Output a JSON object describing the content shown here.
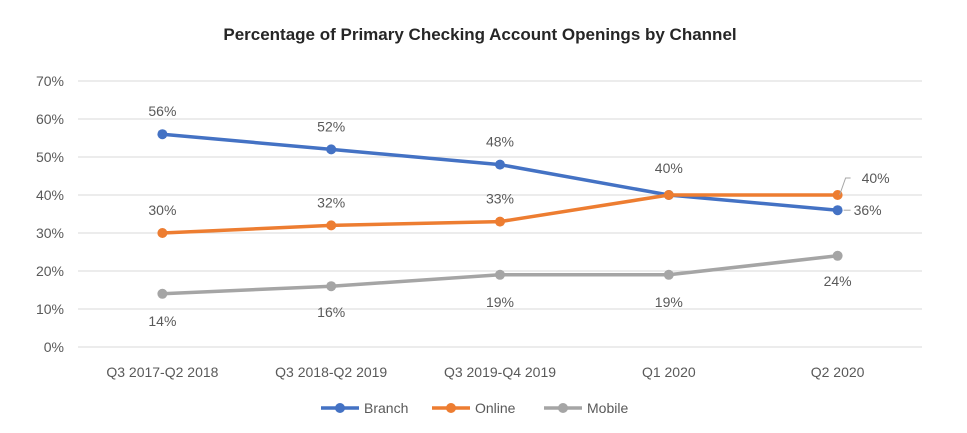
{
  "chart_data": {
    "type": "line",
    "title": "Percentage of Primary Checking Account Openings by Channel",
    "categories": [
      "Q3 2017-Q2 2018",
      "Q3 2018-Q2 2019",
      "Q3 2019-Q4 2019",
      "Q1 2020",
      "Q2 2020"
    ],
    "series": [
      {
        "name": "Branch",
        "values": [
          56,
          52,
          48,
          40,
          36
        ],
        "labels": [
          "56%",
          "52%",
          "48%",
          "",
          "36%"
        ],
        "color": "#4472C4"
      },
      {
        "name": "Online",
        "values": [
          30,
          32,
          33,
          40,
          40
        ],
        "labels": [
          "30%",
          "32%",
          "33%",
          "40%",
          "40%"
        ],
        "color": "#ED7D31"
      },
      {
        "name": "Mobile",
        "values": [
          14,
          16,
          19,
          19,
          24
        ],
        "labels": [
          "14%",
          "16%",
          "19%",
          "19%",
          "24%"
        ],
        "color": "#A5A5A5"
      }
    ],
    "ylim": [
      0,
      70
    ],
    "yticks": [
      0,
      10,
      20,
      30,
      40,
      50,
      60,
      70
    ],
    "ytick_labels": [
      "0%",
      "10%",
      "20%",
      "30%",
      "40%",
      "50%",
      "60%",
      "70%"
    ],
    "grid": true,
    "legend_position": "bottom"
  }
}
